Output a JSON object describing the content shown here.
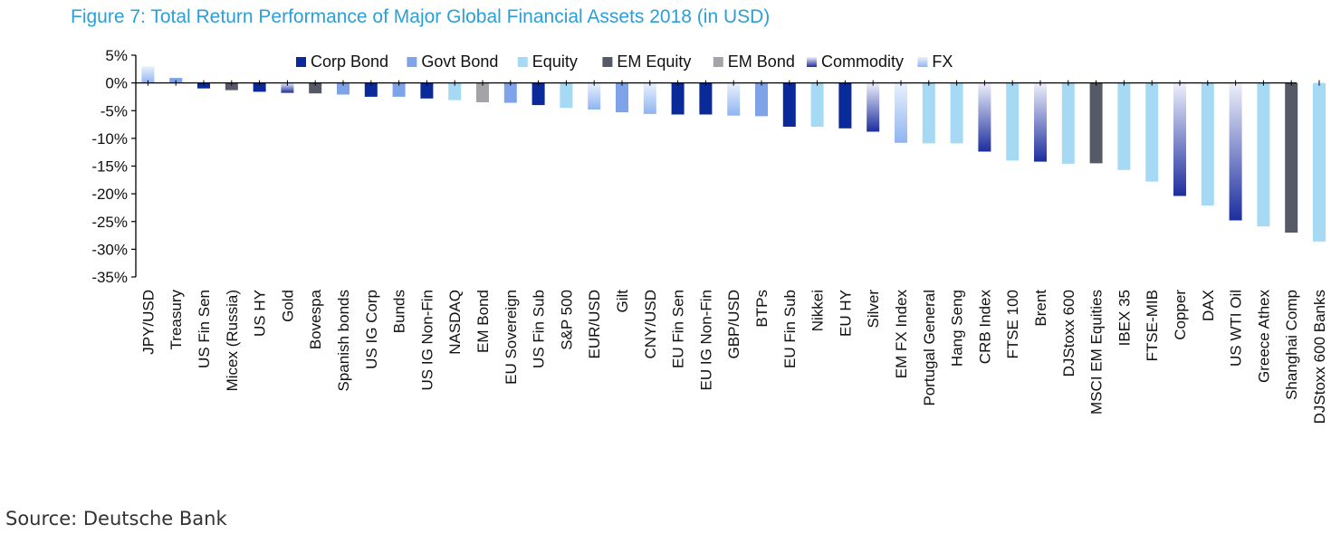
{
  "chart_data": {
    "type": "bar",
    "title": "Figure 7: Total Return Performance of Major Global Financial Assets 2018 (in USD)",
    "source": "Source: Deutsche Bank",
    "xlabel": "",
    "ylabel": "",
    "ylim": [
      -35,
      5
    ],
    "yticks": [
      5,
      0,
      -5,
      -10,
      -15,
      -20,
      -25,
      -30,
      -35
    ],
    "ytick_labels": [
      "5%",
      "0%",
      "-5%",
      "-10%",
      "-15%",
      "-20%",
      "-25%",
      "-30%",
      "-35%"
    ],
    "grid": false,
    "legend_position": "top",
    "legend": [
      {
        "name": "Corp Bond",
        "color": "#0a2a9a"
      },
      {
        "name": "Govt Bond",
        "color": "#7fa3e8"
      },
      {
        "name": "Equity",
        "color": "#a6daf4"
      },
      {
        "name": "EM Equity",
        "color": "#555a66"
      },
      {
        "name": "EM Bond",
        "color": "#a3a3a8"
      },
      {
        "name": "Commodity",
        "color": "#1c2e9e"
      },
      {
        "name": "FX",
        "color": "#8fb4f0"
      }
    ],
    "categories": [
      "JPY/USD",
      "Treasury",
      "US Fin Sen",
      "Micex (Russia)",
      "US HY",
      "Gold",
      "Bovespa",
      "Spanish bonds",
      "US IG Corp",
      "Bunds",
      "US IG Non-Fin",
      "NASDAQ",
      "EM Bond",
      "EU Sovereign",
      "US Fin Sub",
      "S&P 500",
      "EUR/USD",
      "Gilt",
      "CNY/USD",
      "EU Fin Sen",
      "EU IG Non-Fin",
      "GBP/USD",
      "BTPs",
      "EU Fin Sub",
      "Nikkei",
      "EU HY",
      "Silver",
      "EM FX Index",
      "Portugal General",
      "Hang Seng",
      "CRB Index",
      "FTSE 100",
      "Brent",
      "DJStoxx 600",
      "MSCI EM Equities",
      "IBEX 35",
      "FTSE-MIB",
      "Copper",
      "DAX",
      "US WTI Oil",
      "Greece Athex",
      "Shanghai Comp",
      "DJStoxx 600 Banks"
    ],
    "values": [
      3.0,
      0.9,
      -1.0,
      -1.3,
      -1.6,
      -1.8,
      -1.9,
      -2.1,
      -2.5,
      -2.5,
      -2.8,
      -3.1,
      -3.5,
      -3.6,
      -4.0,
      -4.5,
      -4.8,
      -5.3,
      -5.6,
      -5.7,
      -5.7,
      -5.9,
      -6.0,
      -7.9,
      -7.9,
      -8.2,
      -8.8,
      -10.8,
      -10.9,
      -10.9,
      -12.4,
      -14.0,
      -14.2,
      -14.6,
      -14.5,
      -15.7,
      -17.8,
      -20.4,
      -22.1,
      -24.8,
      -25.9,
      -27.0,
      -28.6
    ],
    "classes": [
      "FX",
      "Govt Bond",
      "Corp Bond",
      "EM Equity",
      "Corp Bond",
      "Commodity",
      "EM Equity",
      "Govt Bond",
      "Corp Bond",
      "Govt Bond",
      "Corp Bond",
      "Equity",
      "EM Bond",
      "Govt Bond",
      "Corp Bond",
      "Equity",
      "FX",
      "Govt Bond",
      "FX",
      "Corp Bond",
      "Corp Bond",
      "FX",
      "Govt Bond",
      "Corp Bond",
      "Equity",
      "Corp Bond",
      "Commodity",
      "FX",
      "Equity",
      "Equity",
      "Commodity",
      "Equity",
      "Commodity",
      "Equity",
      "EM Equity",
      "Equity",
      "Equity",
      "Commodity",
      "Equity",
      "Commodity",
      "Equity",
      "EM Equity",
      "Equity"
    ]
  }
}
